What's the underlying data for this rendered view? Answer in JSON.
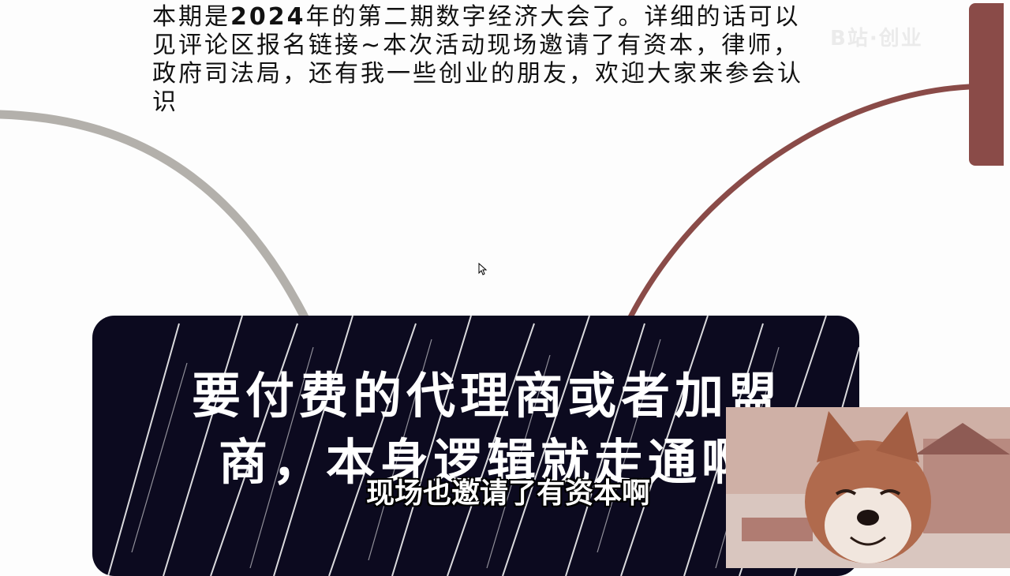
{
  "slide": {
    "intro_bold": "2024",
    "intro_part1": "本期是",
    "intro_part2": "年的第二期数字经济大会了。详细的话可以见评论区报名链接~本次活动现场邀请了有资本，律师，政府司法局，还有我一些创业的朋友，欢迎大家来参会认识",
    "card_text": "要付费的代理商或者加盟商，本身逻辑就走通啊",
    "watermark": "B站·创业"
  },
  "subtitle": {
    "text": "现场也邀请了有资本啊"
  },
  "colors": {
    "card_bg": "#0c0a1f",
    "accent_red": "#8a4b48",
    "curve_gray": "#b3b0ab"
  },
  "icons": {
    "cursor": "arrow-cursor-icon"
  }
}
